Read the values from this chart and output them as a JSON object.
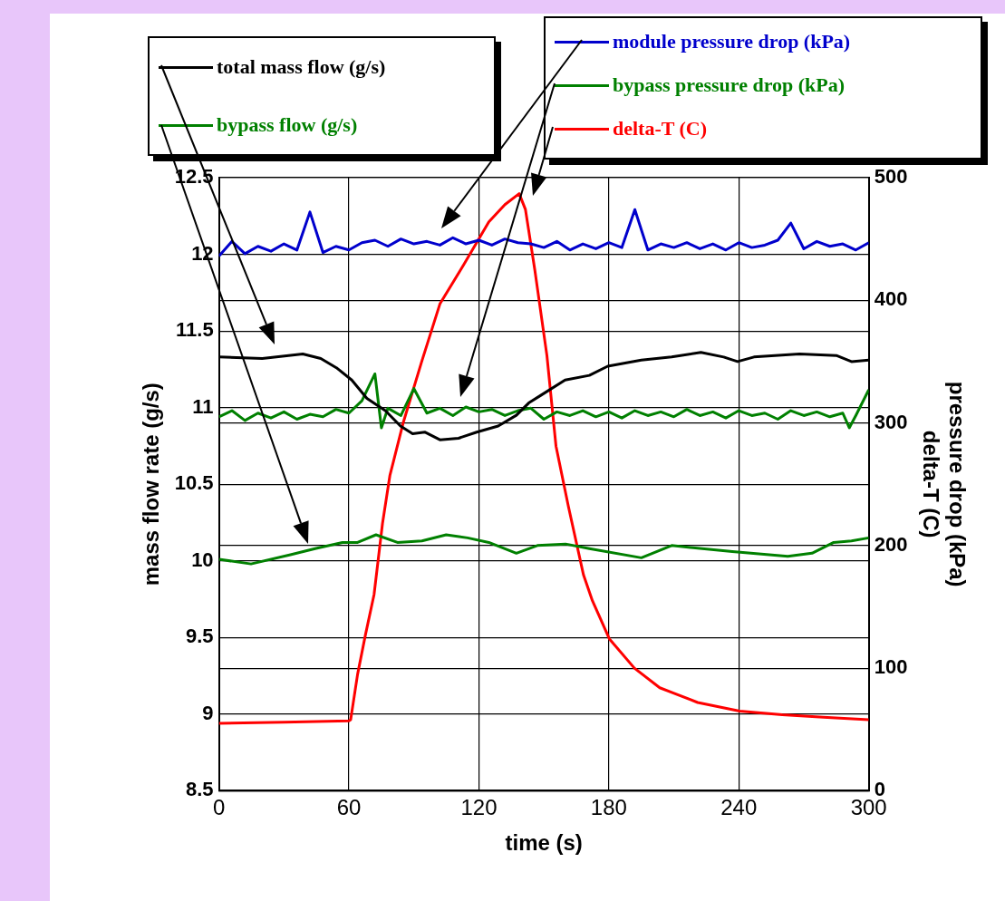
{
  "chart_data": {
    "type": "line",
    "xlabel": "time (s)",
    "ylabel": "mass flow rate (g/s)",
    "y2label": "pressure drop (kPa)\ndelta-T (C)",
    "xlim": [
      0,
      300
    ],
    "xticks": [
      0,
      60,
      120,
      180,
      240,
      300
    ],
    "ylim": [
      8.5,
      12.5
    ],
    "yticks": [
      8.5,
      9,
      9.5,
      10,
      10.5,
      11,
      11.5,
      12,
      12.5
    ],
    "y2lim": [
      0,
      500
    ],
    "y2ticks": [
      0,
      100,
      200,
      300,
      400,
      500
    ],
    "grid": true,
    "legend": "top",
    "marker": "none",
    "line_style": "solid",
    "series": [
      {
        "name": "total mass flow (g/s)",
        "color": "#000000",
        "x": [
          0,
          20,
          38.7,
          47,
          54.2,
          61.3,
          68.3,
          76.8,
          83.8,
          89.4,
          95,
          102,
          110.6,
          119,
          128.9,
          137.3,
          143,
          148.6,
          159.8,
          171,
          179.5,
          195,
          209,
          222.5,
          233,
          239.4,
          247,
          268,
          285,
          292,
          300
        ],
        "values": [
          11.33,
          11.32,
          11.35,
          11.32,
          11.26,
          11.18,
          11.06,
          10.98,
          10.88,
          10.83,
          10.84,
          10.79,
          10.8,
          10.84,
          10.88,
          10.95,
          11.03,
          11.08,
          11.18,
          11.21,
          11.27,
          11.31,
          11.33,
          11.36,
          11.33,
          11.3,
          11.33,
          11.35,
          11.34,
          11.3,
          11.31
        ]
      },
      {
        "name": "bypass flow (g/s)",
        "color": "#008000",
        "x": [
          0,
          14.8,
          33,
          44.4,
          57,
          64,
          72.5,
          82.4,
          93.7,
          104.9,
          114.8,
          124.6,
          137.3,
          147,
          160,
          171,
          195,
          209,
          237,
          262.6,
          273.8,
          283.8,
          292,
          300
        ],
        "values": [
          10.01,
          9.98,
          10.04,
          10.08,
          10.12,
          10.12,
          10.17,
          10.12,
          10.13,
          10.17,
          10.15,
          10.12,
          10.05,
          10.1,
          10.11,
          10.08,
          10.02,
          10.1,
          10.06,
          10.03,
          10.05,
          10.12,
          10.13,
          10.15
        ]
      },
      {
        "name": "module pressure drop (kPa)",
        "color": "#0000cc",
        "axis": "y2",
        "x": [
          0,
          6,
          12,
          18,
          24,
          30,
          36,
          42,
          48,
          54,
          60,
          66,
          72,
          78,
          84,
          90,
          96,
          102,
          108,
          114,
          120,
          126,
          132,
          138,
          144,
          150,
          156,
          162,
          168,
          174,
          180,
          186,
          192,
          198,
          204,
          210,
          216,
          222,
          228,
          234,
          240,
          246,
          252,
          258,
          264,
          270,
          276,
          282,
          288,
          294,
          300
        ],
        "values": [
          436,
          448,
          438,
          444,
          440,
          446,
          441,
          472,
          439,
          444,
          441,
          447,
          449,
          444,
          450,
          446,
          448,
          445,
          451,
          446,
          449,
          445,
          450,
          447,
          446,
          443,
          448,
          441,
          446,
          442,
          447,
          443,
          474,
          441,
          446,
          443,
          447,
          442,
          446,
          441,
          447,
          443,
          445,
          449,
          463,
          442,
          448,
          444,
          446,
          441,
          447
        ]
      },
      {
        "name": "bypass pressure drop (kPa)",
        "color": "#008000",
        "axis": "y2",
        "x": [
          0,
          6,
          12,
          18,
          24,
          30,
          36,
          42,
          48,
          54,
          60,
          66,
          72,
          75,
          78,
          84,
          90,
          96,
          102,
          108,
          114,
          120,
          126,
          132,
          138,
          144,
          150,
          156,
          162,
          168,
          174,
          180,
          186,
          192,
          198,
          204,
          210,
          216,
          222,
          228,
          234,
          240,
          246,
          252,
          258,
          264,
          270,
          276,
          282,
          288,
          291,
          294,
          300
        ],
        "values": [
          305,
          310,
          302,
          308,
          304,
          309,
          303,
          307,
          305,
          311,
          308,
          318,
          340,
          296,
          312,
          306,
          328,
          308,
          312,
          306,
          313,
          309,
          311,
          306,
          310,
          312,
          303,
          309,
          306,
          310,
          305,
          309,
          304,
          310,
          306,
          309,
          305,
          311,
          306,
          309,
          304,
          310,
          306,
          308,
          303,
          310,
          306,
          309,
          305,
          308,
          296,
          306,
          327
        ]
      },
      {
        "name": "delta-T (C)",
        "color": "#ff0000",
        "axis": "y2",
        "x": [
          0,
          30,
          60,
          60.8,
          64,
          67.6,
          71.6,
          75.5,
          78.9,
          85.2,
          93.6,
          102,
          113,
          124.6,
          132,
          138.6,
          141.5,
          145.8,
          151.4,
          155.6,
          161.3,
          168.3,
          172.4,
          180.2,
          191.8,
          203.5,
          221,
          240.4,
          260,
          279,
          300
        ],
        "values": [
          55,
          56,
          57,
          58,
          95,
          127,
          160,
          218,
          257,
          301,
          350,
          397,
          429,
          464,
          478,
          487,
          474,
          425,
          355,
          281,
          232,
          176,
          155,
          124,
          100,
          84,
          72,
          65,
          62,
          60,
          58
        ]
      }
    ]
  }
}
